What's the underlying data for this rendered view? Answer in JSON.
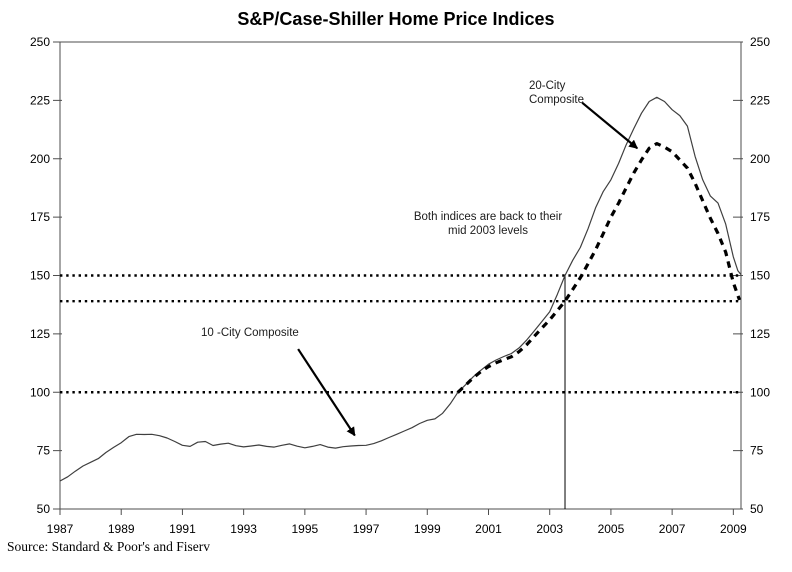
{
  "page": {
    "source": "Source: Standard & Poor's and Fiserv"
  },
  "chart_data": {
    "type": "line",
    "title": "S&P/Case-Shiller Home Price Indices",
    "xlabel": "",
    "ylabel": "",
    "xlim": [
      1987,
      2009.25
    ],
    "ylim": [
      50,
      250
    ],
    "x_ticks": [
      1987,
      1989,
      1991,
      1993,
      1995,
      1997,
      1999,
      2001,
      2003,
      2005,
      2007,
      2009
    ],
    "y_ticks": [
      250,
      225,
      200,
      175,
      150,
      125,
      100,
      75,
      50
    ],
    "grid": "off",
    "legend": "none (series labeled by in-plot annotations)",
    "axis_labels_both_sides": true,
    "colors": {
      "line_10_city": "#3f3f3f",
      "line_20_city": "#000000",
      "reference": "#000000"
    },
    "series": [
      {
        "name": "10-City Composite",
        "style": "solid-thin",
        "points": [
          [
            1987.0,
            62.0
          ],
          [
            1987.25,
            63.8
          ],
          [
            1987.5,
            66.2
          ],
          [
            1987.75,
            68.4
          ],
          [
            1988.0,
            70.0
          ],
          [
            1988.25,
            71.6
          ],
          [
            1988.5,
            74.2
          ],
          [
            1988.75,
            76.4
          ],
          [
            1989.0,
            78.4
          ],
          [
            1989.25,
            81.0
          ],
          [
            1989.5,
            82.0
          ],
          [
            1989.75,
            81.9
          ],
          [
            1990.0,
            82.0
          ],
          [
            1990.25,
            81.4
          ],
          [
            1990.5,
            80.4
          ],
          [
            1990.75,
            78.9
          ],
          [
            1991.0,
            77.3
          ],
          [
            1991.25,
            76.8
          ],
          [
            1991.5,
            78.6
          ],
          [
            1991.75,
            78.9
          ],
          [
            1992.0,
            77.2
          ],
          [
            1992.25,
            77.8
          ],
          [
            1992.5,
            78.2
          ],
          [
            1992.75,
            77.1
          ],
          [
            1993.0,
            76.6
          ],
          [
            1993.25,
            77.0
          ],
          [
            1993.5,
            77.4
          ],
          [
            1993.75,
            76.8
          ],
          [
            1994.0,
            76.5
          ],
          [
            1994.25,
            77.3
          ],
          [
            1994.5,
            77.9
          ],
          [
            1994.75,
            76.9
          ],
          [
            1995.0,
            76.2
          ],
          [
            1995.25,
            76.8
          ],
          [
            1995.5,
            77.6
          ],
          [
            1995.75,
            76.5
          ],
          [
            1996.0,
            76.1
          ],
          [
            1996.25,
            76.7
          ],
          [
            1996.5,
            77.0
          ],
          [
            1996.75,
            77.2
          ],
          [
            1997.0,
            77.3
          ],
          [
            1997.25,
            78.0
          ],
          [
            1997.5,
            79.2
          ],
          [
            1997.75,
            80.6
          ],
          [
            1998.0,
            82.0
          ],
          [
            1998.25,
            83.4
          ],
          [
            1998.5,
            84.8
          ],
          [
            1998.75,
            86.6
          ],
          [
            1999.0,
            88.0
          ],
          [
            1999.25,
            88.6
          ],
          [
            1999.5,
            91.0
          ],
          [
            1999.75,
            95.0
          ],
          [
            2000.0,
            100.0
          ],
          [
            2000.25,
            103.2
          ],
          [
            2000.5,
            106.6
          ],
          [
            2000.75,
            109.4
          ],
          [
            2001.0,
            112.0
          ],
          [
            2001.25,
            113.8
          ],
          [
            2001.5,
            115.3
          ],
          [
            2001.75,
            116.6
          ],
          [
            2002.0,
            119.0
          ],
          [
            2002.25,
            122.4
          ],
          [
            2002.5,
            126.3
          ],
          [
            2002.75,
            130.4
          ],
          [
            2003.0,
            134.5
          ],
          [
            2003.25,
            142.0
          ],
          [
            2003.5,
            150.0
          ],
          [
            2003.75,
            156.5
          ],
          [
            2004.0,
            162.0
          ],
          [
            2004.25,
            170.0
          ],
          [
            2004.5,
            179.0
          ],
          [
            2004.75,
            186.0
          ],
          [
            2005.0,
            191.0
          ],
          [
            2005.25,
            198.0
          ],
          [
            2005.5,
            206.0
          ],
          [
            2005.75,
            213.0
          ],
          [
            2006.0,
            219.5
          ],
          [
            2006.25,
            224.5
          ],
          [
            2006.5,
            226.3
          ],
          [
            2006.75,
            224.5
          ],
          [
            2007.0,
            221.0
          ],
          [
            2007.25,
            218.5
          ],
          [
            2007.5,
            214.0
          ],
          [
            2007.75,
            201.0
          ],
          [
            2008.0,
            191.0
          ],
          [
            2008.25,
            184.0
          ],
          [
            2008.5,
            181.0
          ],
          [
            2008.75,
            172.0
          ],
          [
            2009.0,
            158.0
          ],
          [
            2009.15,
            152.0
          ],
          [
            2009.25,
            150.4
          ]
        ]
      },
      {
        "name": "20-City Composite",
        "style": "dashed-thick",
        "points": [
          [
            2000.0,
            100.0
          ],
          [
            2000.25,
            103.0
          ],
          [
            2000.5,
            106.2
          ],
          [
            2000.75,
            108.8
          ],
          [
            2001.0,
            111.0
          ],
          [
            2001.25,
            112.6
          ],
          [
            2001.5,
            114.0
          ],
          [
            2001.75,
            115.2
          ],
          [
            2002.0,
            117.4
          ],
          [
            2002.25,
            120.4
          ],
          [
            2002.5,
            124.0
          ],
          [
            2002.75,
            127.6
          ],
          [
            2003.0,
            131.0
          ],
          [
            2003.25,
            135.0
          ],
          [
            2003.5,
            139.0
          ],
          [
            2003.75,
            144.0
          ],
          [
            2004.0,
            149.0
          ],
          [
            2004.25,
            155.0
          ],
          [
            2004.5,
            161.0
          ],
          [
            2004.75,
            168.0
          ],
          [
            2005.0,
            175.0
          ],
          [
            2005.25,
            181.0
          ],
          [
            2005.5,
            187.5
          ],
          [
            2005.75,
            194.0
          ],
          [
            2006.0,
            199.5
          ],
          [
            2006.25,
            204.5
          ],
          [
            2006.5,
            206.5
          ],
          [
            2006.75,
            205.0
          ],
          [
            2007.0,
            203.0
          ],
          [
            2007.25,
            199.5
          ],
          [
            2007.5,
            196.0
          ],
          [
            2007.75,
            189.5
          ],
          [
            2008.0,
            182.0
          ],
          [
            2008.25,
            174.5
          ],
          [
            2008.5,
            168.0
          ],
          [
            2008.75,
            160.0
          ],
          [
            2009.0,
            147.0
          ],
          [
            2009.2,
            139.5
          ]
        ]
      }
    ],
    "reference_lines": {
      "horizontal_dotted": [
        150,
        139,
        100
      ],
      "vertical_line": {
        "x": 2003.5,
        "from": 50,
        "to": 150
      }
    },
    "annotations": [
      {
        "id": "20-city",
        "text": "20-City\nComposite",
        "arrow": {
          "from": [
            2004.06,
            224.0
          ],
          "to": [
            2005.86,
            204.5
          ]
        }
      },
      {
        "id": "both-indices",
        "text": "Both indices are back to their\nmid 2003 levels"
      },
      {
        "id": "10-city",
        "text": "10 -City Composite",
        "arrow": {
          "from": [
            1994.78,
            118.5
          ],
          "to": [
            1996.63,
            81.5
          ]
        }
      }
    ]
  }
}
